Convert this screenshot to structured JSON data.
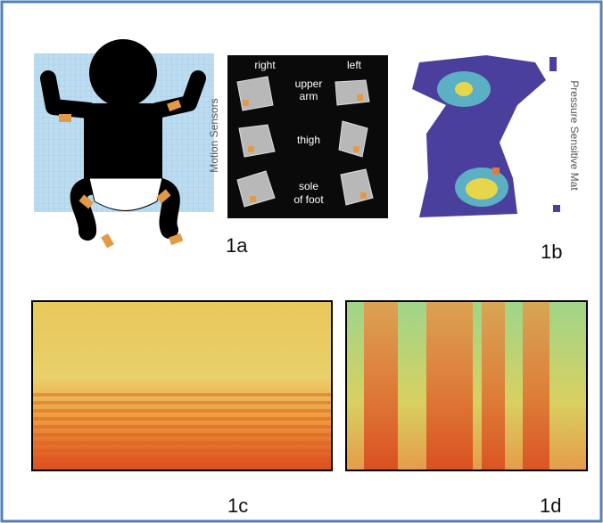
{
  "figure": {
    "panel_1a": {
      "label": "1a",
      "axis_title": "Motion Sensors",
      "columns": [
        "right",
        "left"
      ],
      "rows": [
        [
          "upper",
          "arm"
        ],
        [
          "thigh"
        ],
        [
          "sole",
          "of foot"
        ]
      ]
    },
    "panel_1b": {
      "label": "1b",
      "title": "Pressure Sensitive Mat"
    },
    "panel_1c": {
      "label": "1c"
    },
    "panel_1d": {
      "label": "1d"
    }
  }
}
